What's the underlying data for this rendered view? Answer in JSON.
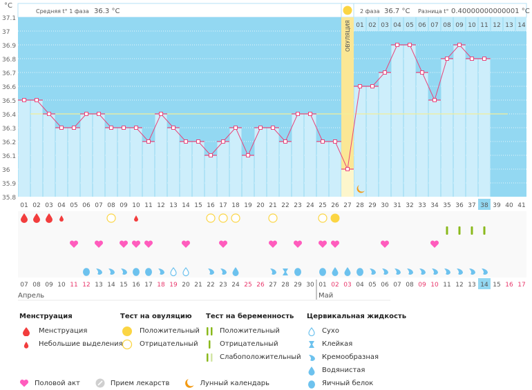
{
  "chart_data": {
    "type": "line",
    "title": "",
    "ylabel": "°C",
    "ylim": [
      35.8,
      37.1
    ],
    "yticks": [
      "37.1",
      "37",
      "36.9",
      "36.8",
      "36.7",
      "36.6",
      "36.5",
      "36.4",
      "36.3",
      "36.2",
      "36.1",
      "36",
      "35.9",
      "35.8"
    ],
    "cycle_days": [
      "01",
      "02",
      "03",
      "04",
      "05",
      "06",
      "07",
      "08",
      "09",
      "10",
      "11",
      "12",
      "13",
      "14",
      "15",
      "16",
      "17",
      "18",
      "19",
      "20",
      "21",
      "22",
      "23",
      "24",
      "25",
      "26",
      "27",
      "28",
      "29",
      "30",
      "31",
      "32",
      "33",
      "34",
      "35",
      "36",
      "37",
      "38",
      "39",
      "40",
      "41"
    ],
    "temperatures": [
      36.5,
      36.5,
      36.4,
      36.3,
      36.3,
      36.4,
      36.4,
      36.3,
      36.3,
      36.3,
      36.2,
      36.4,
      36.3,
      36.2,
      36.2,
      36.1,
      36.2,
      36.3,
      36.1,
      36.3,
      36.3,
      36.2,
      36.4,
      36.4,
      36.2,
      36.2,
      36.0,
      36.6,
      36.6,
      36.7,
      36.9,
      36.9,
      36.7,
      36.5,
      36.8,
      36.9,
      36.8,
      36.8,
      null,
      null,
      null
    ],
    "coverline": 36.4,
    "ovulation_day": 27,
    "ovulation_label": "ОВУЛЯЦИЯ",
    "current_day": 38,
    "phase2_days": [
      "01",
      "02",
      "03",
      "04",
      "05",
      "06",
      "07",
      "08",
      "09",
      "10",
      "11",
      "12",
      "13",
      "14"
    ],
    "calendar_dates": [
      "07",
      "08",
      "09",
      "10",
      "11",
      "12",
      "13",
      "14",
      "15",
      "16",
      "17",
      "18",
      "19",
      "20",
      "21",
      "22",
      "23",
      "24",
      "25",
      "26",
      "27",
      "28",
      "29",
      "30",
      "01",
      "02",
      "03",
      "04",
      "05",
      "06",
      "07",
      "08",
      "09",
      "10",
      "11",
      "12",
      "13",
      "14",
      "15",
      "16",
      "17"
    ],
    "weekend_date_indices": [
      4,
      5,
      11,
      12,
      18,
      19,
      25,
      26,
      32,
      33,
      39,
      40
    ],
    "months": [
      {
        "label": "Апрель",
        "start_index": 0
      },
      {
        "label": "Май",
        "start_index": 24
      }
    ],
    "current_date_index": 37,
    "menstruation": [
      {
        "day": 1,
        "type": "heavy"
      },
      {
        "day": 2,
        "type": "heavy"
      },
      {
        "day": 3,
        "type": "heavy"
      },
      {
        "day": 4,
        "type": "light"
      },
      {
        "day": 10,
        "type": "light"
      }
    ],
    "ovulation_tests": [
      {
        "day": 8,
        "result": "negative"
      },
      {
        "day": 16,
        "result": "negative"
      },
      {
        "day": 17,
        "result": "negative"
      },
      {
        "day": 18,
        "result": "negative"
      },
      {
        "day": 21,
        "result": "negative"
      },
      {
        "day": 25,
        "result": "negative"
      },
      {
        "day": 26,
        "result": "positive"
      }
    ],
    "pregnancy_tests": [
      {
        "day": 35,
        "result": "negative"
      },
      {
        "day": 36,
        "result": "negative"
      },
      {
        "day": 37,
        "result": "negative"
      },
      {
        "day": 38,
        "result": "negative"
      }
    ],
    "intercourse_days": [
      5,
      7,
      9,
      10,
      11,
      14,
      17,
      21,
      23,
      25,
      26,
      30,
      34
    ],
    "cervical_fluid": [
      {
        "day": 6,
        "type": "eggwhite"
      },
      {
        "day": 7,
        "type": "creamy"
      },
      {
        "day": 8,
        "type": "creamy"
      },
      {
        "day": 9,
        "type": "creamy"
      },
      {
        "day": 10,
        "type": "eggwhite"
      },
      {
        "day": 11,
        "type": "eggwhite"
      },
      {
        "day": 12,
        "type": "creamy"
      },
      {
        "day": 13,
        "type": "dry"
      },
      {
        "day": 14,
        "type": "dry"
      },
      {
        "day": 16,
        "type": "creamy"
      },
      {
        "day": 17,
        "type": "creamy"
      },
      {
        "day": 18,
        "type": "watery"
      },
      {
        "day": 21,
        "type": "creamy"
      },
      {
        "day": 22,
        "type": "sticky"
      },
      {
        "day": 23,
        "type": "eggwhite"
      },
      {
        "day": 25,
        "type": "eggwhite"
      },
      {
        "day": 26,
        "type": "watery"
      },
      {
        "day": 27,
        "type": "watery"
      },
      {
        "day": 28,
        "type": "eggwhite"
      },
      {
        "day": 29,
        "type": "creamy"
      },
      {
        "day": 30,
        "type": "creamy"
      },
      {
        "day": 31,
        "type": "creamy"
      },
      {
        "day": 32,
        "type": "creamy"
      },
      {
        "day": 33,
        "type": "creamy"
      },
      {
        "day": 34,
        "type": "creamy"
      },
      {
        "day": 35,
        "type": "creamy"
      },
      {
        "day": 36,
        "type": "creamy"
      },
      {
        "day": 37,
        "type": "creamy"
      },
      {
        "day": 38,
        "type": "creamy"
      }
    ],
    "moon_day": 28
  },
  "header": {
    "phase1_label": "Средняя t° 1 фаза",
    "phase1_value": "36.3 °C",
    "phase2_label": "2 фаза",
    "phase2_value": "36.7 °C",
    "diff_label": "Разница t°",
    "diff_value": "0.40000000000001 °C"
  },
  "legend": {
    "menstruation": {
      "title": "Менструация",
      "items": [
        "Менструация",
        "Небольшие выделения"
      ]
    },
    "ovulation_test": {
      "title": "Тест на овуляцию",
      "items": [
        "Положительный",
        "Отрицательный"
      ]
    },
    "pregnancy_test": {
      "title": "Тест на беременность",
      "items": [
        "Положительный",
        "Отрицательный",
        "Слабоположительный"
      ]
    },
    "cervical_fluid": {
      "title": "Цервикальная жидкость",
      "items": [
        "Сухо",
        "Клейкая",
        "Кремообразная",
        "Водянистая",
        "Яичный белок"
      ]
    },
    "other": [
      "Половой акт",
      "Прием лекарств",
      "Лунный календарь"
    ]
  },
  "colors": {
    "plot_bg": "#93d8f2",
    "bar_fill": "#cdeefb",
    "line": "#e8447a",
    "coverline": "#f3ef9a",
    "ovulation": "#fbe795",
    "menstruation": "#f23d3d",
    "heart": "#ff5cbd",
    "fluid": "#6dc2ee",
    "ov_test": "#fbd543",
    "preg_test": "#8ab91c",
    "moon": "#f39a12",
    "weekend": "#e8356a"
  }
}
